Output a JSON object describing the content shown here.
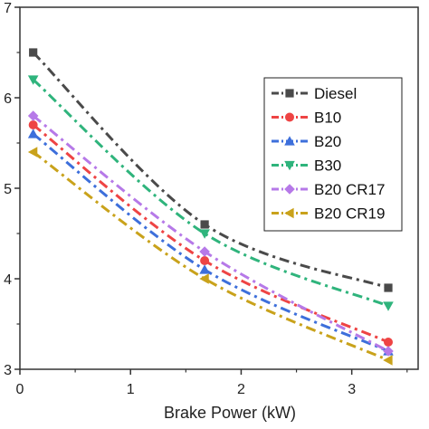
{
  "chart_data": {
    "type": "line",
    "xlabel": "Brake Power (kW)",
    "ylabel": "",
    "xlim": [
      0,
      3.6
    ],
    "ylim": [
      3,
      7
    ],
    "xticks": [
      "0",
      "1",
      "2",
      "3"
    ],
    "yticks": [
      "3",
      "4",
      "5",
      "6",
      "7"
    ],
    "x": [
      0.12,
      1.67,
      3.33
    ],
    "grid": false,
    "legend_position": "right",
    "line_style": "dash-dot",
    "series": [
      {
        "name": "Diesel",
        "values": [
          6.5,
          4.6,
          3.9
        ],
        "color": "#4a4a4a",
        "marker": "square"
      },
      {
        "name": "B10",
        "values": [
          5.7,
          4.2,
          3.3
        ],
        "color": "#ee4444",
        "marker": "circle"
      },
      {
        "name": "B20",
        "values": [
          5.6,
          4.1,
          3.2
        ],
        "color": "#3d6fdb",
        "marker": "triangle-up"
      },
      {
        "name": "B30",
        "values": [
          6.2,
          4.5,
          3.7
        ],
        "color": "#2fb47c",
        "marker": "triangle-down"
      },
      {
        "name": "B20 CR17",
        "values": [
          5.8,
          4.3,
          3.2
        ],
        "color": "#b679e8",
        "marker": "diamond"
      },
      {
        "name": "B20 CR19",
        "values": [
          5.4,
          4.0,
          3.1
        ],
        "color": "#c9a21b",
        "marker": "triangle-left"
      }
    ]
  }
}
